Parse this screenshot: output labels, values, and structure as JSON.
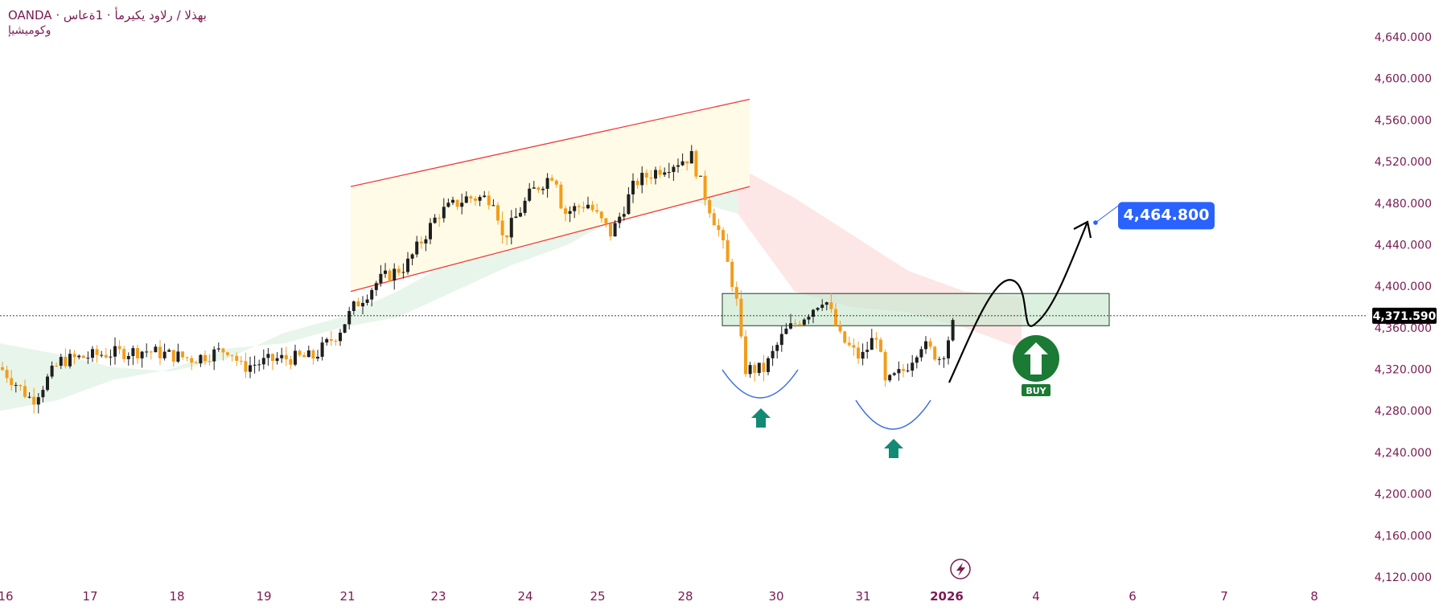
{
  "header": {
    "symbol_line": "OANDA · بهذلا / رلاود يكيرمأ · 1ةعاس",
    "indicator": "وكوميشيإ"
  },
  "colors": {
    "bull": "#1f1f1f",
    "bear": "#f29d1b",
    "channel_line": "#ef3b3b",
    "channel_fill": "#fffbe6",
    "cloud_green": "#e6f4e8",
    "cloud_red": "#fde3e3",
    "zone_fill": "#c9e8d0",
    "cup_curve": "#3b6fe0",
    "arrow_teal": "#138a73",
    "target_blue": "#2962ff",
    "buy_green": "#1b7a34",
    "axis_text": "#7b1b52"
  },
  "price_label": "4,371.590",
  "target_label": "4,464.800",
  "buy_label": "BUY",
  "lightning_icon": "lightning-bolt-icon",
  "chart_data": {
    "type": "candlestick",
    "title": "",
    "xlabel": "",
    "ylabel": "",
    "ylim": [
      4117,
      4660
    ],
    "y_ticks": [
      "4,640.000",
      "4,600.000",
      "4,560.000",
      "4,520.000",
      "4,480.000",
      "4,440.000",
      "4,400.000",
      "4,360.000",
      "4,320.000",
      "4,280.000",
      "4,240.000",
      "4,200.000",
      "4,160.000",
      "4,120.000"
    ],
    "x_ticks": [
      "16",
      "17",
      "18",
      "19",
      "21",
      "23",
      "24",
      "25",
      "28",
      "30",
      "31",
      "2026",
      "4",
      "6",
      "7",
      "8"
    ],
    "current_price": 4371.59,
    "target_price": 4464.8,
    "resistance_zone": [
      4362,
      4393
    ],
    "channel": {
      "upper": [
        4496,
        4580
      ],
      "lower": [
        4395,
        4496
      ]
    },
    "key_path": [
      4320,
      4290,
      4330,
      4310,
      4345,
      4375,
      4350,
      4360,
      4330,
      4295,
      4340,
      4300,
      4328,
      4372
    ],
    "cloud_upper": [
      4345,
      4335,
      4322,
      4318,
      4330,
      4355,
      4370,
      4395,
      4425,
      4450,
      4480,
      4500,
      4520,
      4515,
      4485,
      4450,
      4415,
      4395,
      4390
    ],
    "cloud_lower": [
      4280,
      4290,
      4310,
      4320,
      4340,
      4345,
      4360,
      4370,
      4395,
      4420,
      4440,
      4470,
      4485,
      4470,
      4395,
      4380,
      4375,
      4360,
      4340
    ],
    "annotations": [
      "4,464.800",
      "BUY"
    ]
  }
}
